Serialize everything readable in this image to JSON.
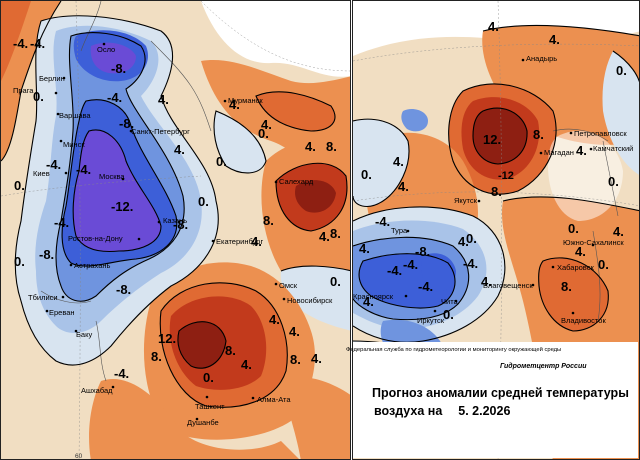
{
  "agency": "Федеральная служба по гидрометеорологии и мониторингу окружающей среды",
  "brand": "Гидрометцентр России",
  "title_line1": "Прогноз аномалии средней температуры",
  "title_line2_prefix": "воздуха на",
  "forecast_date": "5. 2.2026",
  "longitude_label": "60",
  "colors": {
    "deep_cold": "#6a4bd6",
    "cold": "#3d5fd8",
    "cool": "#6f94df",
    "light_cool": "#a9c3e8",
    "pale_blue": "#d8e4f0",
    "neutral": "#f1dec2",
    "warm_light": "#f1c08a",
    "warm": "#ec9050",
    "warmer": "#e06a33",
    "hot": "#c23a1c",
    "very_hot": "#8e1f12"
  },
  "cities_west": [
    "Осло",
    "Берлин",
    "Прага",
    "Варшава",
    "Минск",
    "Киев",
    "Москва",
    "Санкт-Петербург",
    "Мурманск",
    "Ростов-на-Дону",
    "Казань",
    "Екатеринбург",
    "Салехард",
    "Астрахань",
    "Тбилиси",
    "Ереван",
    "Баку",
    "Омск",
    "Новосибирск",
    "Ашхабад",
    "Ташкент",
    "Алма-Ата",
    "Душанбе"
  ],
  "cities_east": [
    "Анадырь",
    "Петропавловск",
    "Камчатский",
    "Магадан",
    "Якутск",
    "Тура",
    "Южно-Сахалинск",
    "Хабаровск",
    "Благовещенск",
    "Красноярск",
    "Чита",
    "Иркутск",
    "Владивосток"
  ],
  "isotherms_west": [
    "-4.",
    "-4.",
    "-8.",
    "0.",
    "-4.",
    "-8.",
    "-4.",
    "-12.",
    "-8.",
    "-4.",
    "-8.",
    "-8.",
    "-4.",
    "0.",
    "0.",
    "4.",
    "4.",
    "0.",
    "4.",
    "4.",
    "8.",
    "4.",
    "8.",
    "4.",
    "12.",
    "8.",
    "8.",
    "0.",
    "-4.",
    "4.",
    "8.",
    "8.",
    "0.",
    "4.",
    "4.",
    "4.",
    "4.",
    "0.",
    "0."
  ],
  "isotherms_east": [
    "4.",
    "4.",
    "0.",
    "12.",
    "8.",
    "-12",
    "8.",
    "4.",
    "0.",
    "0.",
    "4.",
    "4.",
    "4.",
    "-4.",
    "4.",
    "-8.",
    "-4.",
    "4.",
    "4.",
    "0.",
    "0.",
    "0.",
    "4.",
    "-4.",
    "-4.",
    "8.",
    "-4.",
    "4.",
    "0."
  ]
}
